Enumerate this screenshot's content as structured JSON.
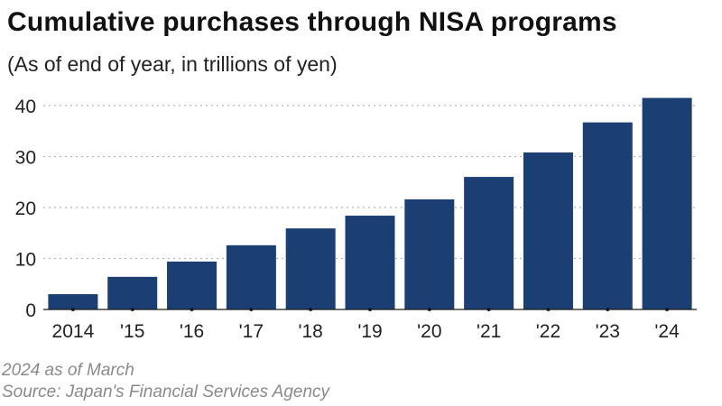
{
  "chart_data": {
    "type": "bar",
    "title": "Cumulative purchases through NISA programs",
    "subtitle": "(As of end of year, in trillions of yen)",
    "categories": [
      "2014",
      "'15",
      "'16",
      "'17",
      "'18",
      "'19",
      "'20",
      "'21",
      "'22",
      "'23",
      "'24"
    ],
    "values": [
      3.0,
      6.4,
      9.4,
      12.6,
      15.9,
      18.4,
      21.6,
      26.0,
      30.8,
      36.7,
      41.5
    ],
    "ylim": [
      0,
      40
    ],
    "yticks": [
      0,
      10,
      20,
      30,
      40
    ],
    "grid": "horizontal dotted",
    "bar_color": "#1b3f73"
  },
  "notes": {
    "line1": "2024 as of March",
    "line2": "Source: Japan's Financial Services Agency"
  }
}
